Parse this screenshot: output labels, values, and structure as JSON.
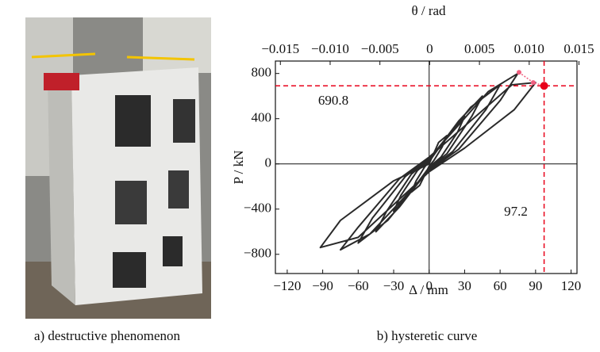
{
  "chart_data": {
    "type": "line",
    "x_label": "Δ / mm",
    "y_label": "P / kN",
    "x2_label": "θ / rad",
    "caption_left": "a) destructive phenomenon",
    "caption_right": "b) hysteretic curve",
    "xlim": [
      -130,
      125
    ],
    "ylim": [
      -970,
      910
    ],
    "x2lim": [
      -0.0155,
      0.0148
    ],
    "xticks": [
      {
        "value": -120,
        "label": "−120"
      },
      {
        "value": -90,
        "label": "−90"
      },
      {
        "value": -60,
        "label": "−60"
      },
      {
        "value": -30,
        "label": "−30"
      },
      0,
      30,
      60,
      90,
      120
    ],
    "yticks": [
      {
        "value": -800,
        "label": "−800"
      },
      {
        "value": -400,
        "label": "−400"
      },
      0,
      400,
      800
    ],
    "x2ticks": [
      {
        "value": -0.015,
        "label": "−0.015"
      },
      {
        "value": -0.01,
        "label": "−0.010"
      },
      {
        "value": -0.005,
        "label": "−0.005"
      },
      0,
      0.005,
      {
        "value": 0.01,
        "label": "0.010"
      },
      0.015
    ],
    "series": [
      {
        "color": "#2a2a2a",
        "x": [
          0,
          8,
          15,
          11,
          4,
          0,
          -8,
          -15,
          -11,
          -4,
          0,
          15,
          30,
          24,
          10,
          0,
          -15,
          -30,
          -24,
          -10,
          0,
          25,
          45,
          36,
          15,
          0,
          -25,
          -45,
          -36,
          -15,
          0,
          35,
          60,
          48,
          20,
          0,
          -35,
          -60,
          -48,
          -20,
          0,
          50,
          75,
          60,
          25,
          0,
          -50,
          -75,
          -60,
          -25,
          0,
          70,
          90,
          72,
          30,
          0,
          -60,
          -92,
          -75,
          -30,
          0
        ],
        "values": [
          0,
          190,
          250,
          150,
          30,
          -20,
          -190,
          -250,
          -150,
          -30,
          20,
          240,
          420,
          280,
          60,
          -30,
          -240,
          -420,
          -280,
          -60,
          30,
          380,
          600,
          420,
          90,
          -40,
          -380,
          -600,
          -420,
          -90,
          40,
          500,
          700,
          480,
          110,
          -50,
          -500,
          -700,
          -480,
          -110,
          50,
          640,
          800,
          560,
          130,
          -60,
          -620,
          -760,
          -560,
          -130,
          60,
          700,
          720,
          480,
          140,
          -70,
          -650,
          -740,
          -500,
          -150,
          0
        ]
      }
    ],
    "peak_points": {
      "color": "#f06080",
      "x": [
        76,
        88
      ],
      "values": [
        810,
        720
      ]
    },
    "ultimate_point": {
      "color": "#e8001a",
      "x": 97.2,
      "value": 690.8,
      "x_label": "97.2",
      "value_label": "690.8"
    }
  }
}
